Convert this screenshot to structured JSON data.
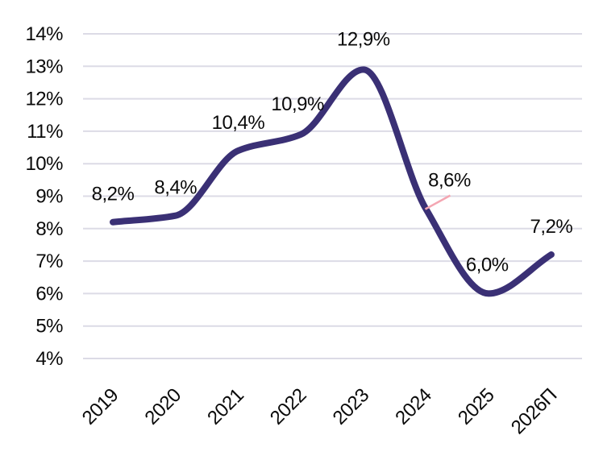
{
  "chart_data": {
    "type": "line",
    "categories": [
      "2019",
      "2020",
      "2021",
      "2022",
      "2023",
      "2024",
      "2025",
      "2026П"
    ],
    "values": [
      8.2,
      8.4,
      10.4,
      10.9,
      12.9,
      8.6,
      6.0,
      7.2
    ],
    "data_labels": [
      "8,2%",
      "8,4%",
      "10,4%",
      "10,9%",
      "12,9%",
      "8,6%",
      "6,0%",
      "7,2%"
    ],
    "title": "",
    "xlabel": "",
    "ylabel": "",
    "ylim": [
      4,
      14
    ],
    "y_tick_step": 1,
    "y_tick_labels": [
      "14%",
      "13%",
      "12%",
      "11%",
      "10%",
      "9%",
      "8%",
      "7%",
      "6%",
      "5%",
      "4%"
    ],
    "grid": "horizontal",
    "legend": false,
    "smooth": true,
    "colors": {
      "line": "#3a3075",
      "grid": "#dcdbe6",
      "text": "#0a0a0a",
      "leader_line": "#f4a6b2"
    }
  }
}
